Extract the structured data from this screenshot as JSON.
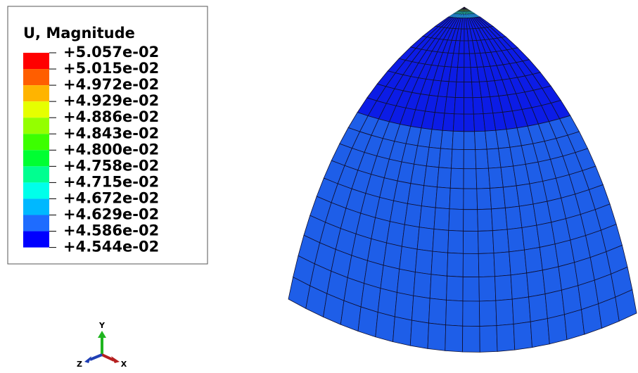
{
  "legend": {
    "title": "U, Magnitude",
    "labels": [
      "+5.057e-02",
      "+5.015e-02",
      "+4.972e-02",
      "+4.929e-02",
      "+4.886e-02",
      "+4.843e-02",
      "+4.800e-02",
      "+4.758e-02",
      "+4.715e-02",
      "+4.672e-02",
      "+4.629e-02",
      "+4.586e-02",
      "+4.544e-02"
    ],
    "colors": [
      "#ff0000",
      "#ff5e00",
      "#ffb400",
      "#e6ff00",
      "#94ff00",
      "#3cff00",
      "#00ff32",
      "#00ff90",
      "#00ffea",
      "#00b8ff",
      "#1e6cff",
      "#0000ff"
    ]
  },
  "triad": {
    "y": "Y",
    "z": "Z",
    "x": "X"
  }
}
